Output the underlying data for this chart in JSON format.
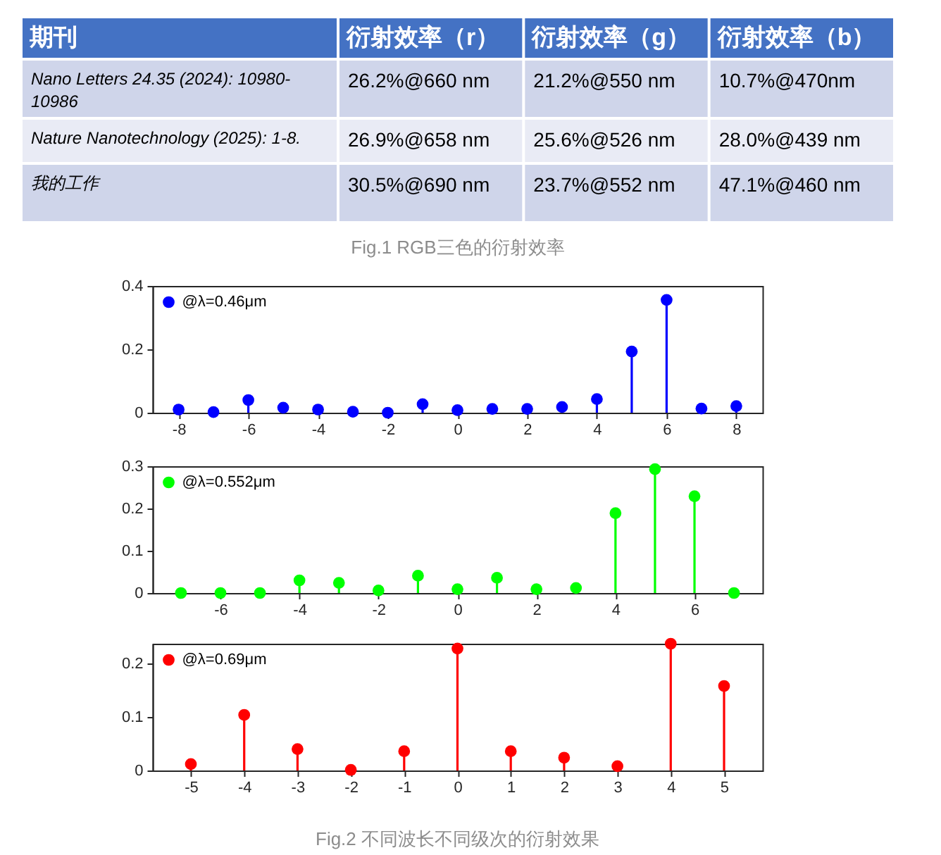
{
  "chart_data": [
    {
      "type": "other",
      "categories": [
        "期刊",
        "衍射效率（r）",
        "衍射效率（g）",
        "衍射效率（b）"
      ],
      "y_categories": [
        "Nano Letters 24.35 (2024): 10980-10986",
        "Nature Nanotechnology (2025): 1-8.",
        "我的工作"
      ],
      "cell_labels": [
        [
          "26.2%@660 nm",
          "21.2%@550 nm",
          "10.7%@470nm"
        ],
        [
          "26.9%@658 nm",
          "25.6%@526 nm",
          "28.0%@439 nm"
        ],
        [
          "30.5%@690 nm",
          "23.7%@552 nm",
          "47.1%@460 nm"
        ]
      ],
      "annotations": [
        "Fig.1 RGB三色的衍射效率"
      ]
    },
    {
      "type": "lollipop",
      "x": [
        -8,
        -7,
        -6,
        -5,
        -4,
        -3,
        -2,
        -1,
        0,
        1,
        2,
        3,
        4,
        5,
        6,
        7,
        8
      ],
      "series": [
        {
          "name": "@λ=0.46μm",
          "color": "#0000ff",
          "values": [
            0.01,
            0.002,
            0.04,
            0.016,
            0.01,
            0.003,
            0.0,
            0.027,
            0.008,
            0.012,
            0.012,
            0.018,
            0.043,
            0.193,
            0.356,
            0.013,
            0.021
          ]
        }
      ],
      "xlim": [
        -8.75,
        8.75
      ],
      "ylim": [
        0,
        0.4
      ],
      "xticks": [
        -8,
        -6,
        -4,
        -2,
        0,
        2,
        4,
        6,
        8
      ],
      "yticks": [
        0,
        0.2,
        0.4
      ],
      "legend": "top left",
      "marker": "circle"
    },
    {
      "type": "lollipop",
      "x": [
        -7,
        -6,
        -5,
        -4,
        -3,
        -2,
        -1,
        0,
        1,
        2,
        3,
        4,
        5,
        6,
        7
      ],
      "series": [
        {
          "name": "@λ=0.552μm",
          "color": "#00ff00",
          "values": [
            0.0,
            0.0,
            0.0,
            0.03,
            0.024,
            0.006,
            0.041,
            0.009,
            0.036,
            0.009,
            0.012,
            0.189,
            0.293,
            0.229,
            0.0
          ]
        }
      ],
      "xlim": [
        -7.72,
        7.72
      ],
      "ylim": [
        0,
        0.3
      ],
      "xticks": [
        -6,
        -4,
        -2,
        0,
        2,
        4,
        6
      ],
      "yticks": [
        0,
        0.1,
        0.2,
        0.3
      ],
      "legend": "top left",
      "marker": "circle"
    },
    {
      "type": "lollipop",
      "x": [
        -5,
        -4,
        -3,
        -2,
        -1,
        0,
        1,
        2,
        3,
        4,
        5
      ],
      "series": [
        {
          "name": "@λ=0.69μm",
          "color": "#ff0000",
          "values": [
            0.012,
            0.104,
            0.04,
            0.001,
            0.036,
            0.228,
            0.036,
            0.024,
            0.008,
            0.237,
            0.158
          ]
        }
      ],
      "xlim": [
        -5.72,
        5.72
      ],
      "ylim": [
        0,
        0.237
      ],
      "xticks": [
        -5,
        -4,
        -3,
        -2,
        -1,
        0,
        1,
        2,
        3,
        4,
        5
      ],
      "yticks": [
        0,
        0.1,
        0.2
      ],
      "legend": "top left",
      "marker": "circle",
      "annotations": [
        "Fig.2 不同波长不同级次的衍射效果"
      ]
    }
  ]
}
